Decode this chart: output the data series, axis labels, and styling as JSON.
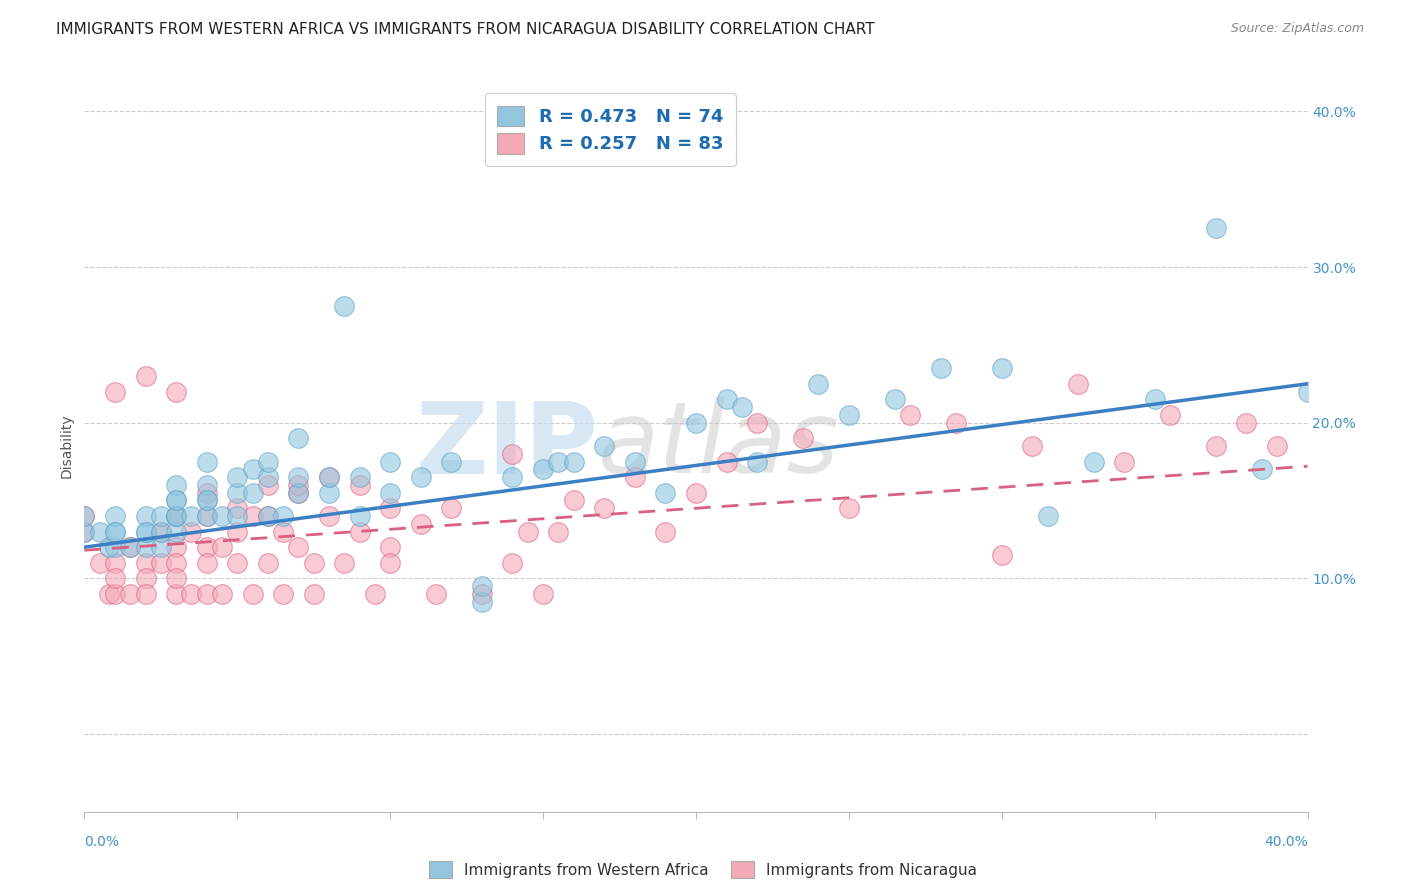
{
  "title": "IMMIGRANTS FROM WESTERN AFRICA VS IMMIGRANTS FROM NICARAGUA DISABILITY CORRELATION CHART",
  "source": "Source: ZipAtlas.com",
  "ylabel": "Disability",
  "xlim": [
    0.0,
    0.4
  ],
  "ylim": [
    -0.05,
    0.42
  ],
  "series1": {
    "label": "Immigrants from Western Africa",
    "color": "#92C5DE",
    "edge_color": "#5BA3C9",
    "R": 0.473,
    "N": 74,
    "line_color": "#3B7FC4",
    "scatter_x": [
      0.0,
      0.0,
      0.005,
      0.008,
      0.01,
      0.01,
      0.01,
      0.01,
      0.015,
      0.02,
      0.02,
      0.02,
      0.02,
      0.025,
      0.025,
      0.025,
      0.03,
      0.03,
      0.03,
      0.03,
      0.03,
      0.03,
      0.035,
      0.04,
      0.04,
      0.04,
      0.04,
      0.04,
      0.045,
      0.05,
      0.05,
      0.05,
      0.055,
      0.055,
      0.06,
      0.06,
      0.06,
      0.065,
      0.07,
      0.07,
      0.07,
      0.08,
      0.08,
      0.085,
      0.09,
      0.09,
      0.1,
      0.1,
      0.11,
      0.12,
      0.13,
      0.13,
      0.14,
      0.15,
      0.155,
      0.16,
      0.17,
      0.18,
      0.19,
      0.2,
      0.21,
      0.215,
      0.22,
      0.24,
      0.25,
      0.265,
      0.28,
      0.3,
      0.315,
      0.33,
      0.35,
      0.37,
      0.385,
      0.4
    ],
    "scatter_y": [
      0.13,
      0.14,
      0.13,
      0.12,
      0.12,
      0.13,
      0.14,
      0.13,
      0.12,
      0.12,
      0.13,
      0.14,
      0.13,
      0.12,
      0.13,
      0.14,
      0.13,
      0.14,
      0.15,
      0.14,
      0.16,
      0.15,
      0.14,
      0.15,
      0.16,
      0.14,
      0.175,
      0.15,
      0.14,
      0.155,
      0.165,
      0.14,
      0.155,
      0.17,
      0.14,
      0.165,
      0.175,
      0.14,
      0.155,
      0.165,
      0.19,
      0.155,
      0.165,
      0.275,
      0.14,
      0.165,
      0.155,
      0.175,
      0.165,
      0.175,
      0.085,
      0.095,
      0.165,
      0.17,
      0.175,
      0.175,
      0.185,
      0.175,
      0.155,
      0.2,
      0.215,
      0.21,
      0.175,
      0.225,
      0.205,
      0.215,
      0.235,
      0.235,
      0.14,
      0.175,
      0.215,
      0.325,
      0.17,
      0.22
    ],
    "trend_x": [
      0.0,
      0.4
    ],
    "trend_y": [
      0.12,
      0.225
    ]
  },
  "series2": {
    "label": "Immigrants from Nicaragua",
    "color": "#F4A9B8",
    "edge_color": "#E06080",
    "R": 0.257,
    "N": 83,
    "line_color": "#D96080",
    "scatter_x": [
      0.0,
      0.0,
      0.005,
      0.008,
      0.01,
      0.01,
      0.01,
      0.01,
      0.015,
      0.015,
      0.02,
      0.02,
      0.02,
      0.02,
      0.025,
      0.025,
      0.03,
      0.03,
      0.03,
      0.03,
      0.03,
      0.03,
      0.035,
      0.035,
      0.04,
      0.04,
      0.04,
      0.04,
      0.04,
      0.045,
      0.045,
      0.05,
      0.05,
      0.05,
      0.055,
      0.055,
      0.06,
      0.06,
      0.06,
      0.065,
      0.065,
      0.07,
      0.07,
      0.07,
      0.075,
      0.075,
      0.08,
      0.08,
      0.085,
      0.09,
      0.09,
      0.095,
      0.1,
      0.1,
      0.1,
      0.11,
      0.115,
      0.12,
      0.13,
      0.14,
      0.14,
      0.145,
      0.15,
      0.155,
      0.16,
      0.17,
      0.18,
      0.19,
      0.2,
      0.21,
      0.22,
      0.235,
      0.25,
      0.27,
      0.285,
      0.3,
      0.31,
      0.325,
      0.34,
      0.355,
      0.37,
      0.38,
      0.39
    ],
    "scatter_y": [
      0.13,
      0.14,
      0.11,
      0.09,
      0.11,
      0.09,
      0.1,
      0.22,
      0.09,
      0.12,
      0.11,
      0.1,
      0.09,
      0.23,
      0.13,
      0.11,
      0.09,
      0.12,
      0.14,
      0.11,
      0.1,
      0.22,
      0.13,
      0.09,
      0.12,
      0.14,
      0.09,
      0.155,
      0.11,
      0.12,
      0.09,
      0.13,
      0.11,
      0.145,
      0.09,
      0.14,
      0.14,
      0.16,
      0.11,
      0.13,
      0.09,
      0.12,
      0.155,
      0.16,
      0.11,
      0.09,
      0.14,
      0.165,
      0.11,
      0.13,
      0.16,
      0.09,
      0.145,
      0.12,
      0.11,
      0.135,
      0.09,
      0.145,
      0.09,
      0.18,
      0.11,
      0.13,
      0.09,
      0.13,
      0.15,
      0.145,
      0.165,
      0.13,
      0.155,
      0.175,
      0.2,
      0.19,
      0.145,
      0.205,
      0.2,
      0.115,
      0.185,
      0.225,
      0.175,
      0.205,
      0.185,
      0.2,
      0.185
    ],
    "trend_x": [
      0.0,
      0.4
    ],
    "trend_y": [
      0.118,
      0.172
    ]
  },
  "watermark_text": "ZIP",
  "watermark_text2": "atlas",
  "background_color": "#FFFFFF",
  "grid_color": "#CCCCCC",
  "title_fontsize": 11,
  "axis_label_fontsize": 10,
  "tick_fontsize": 10,
  "legend_fontsize": 13
}
